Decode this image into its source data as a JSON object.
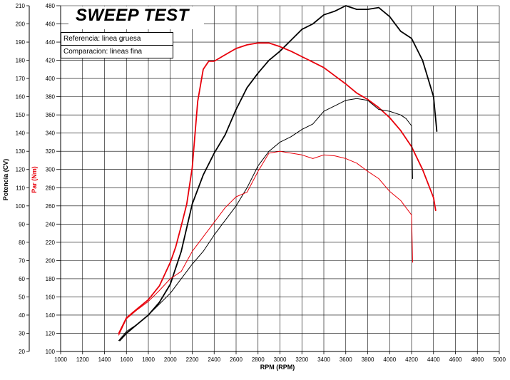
{
  "chart_data": {
    "type": "line",
    "title": "SWEEP TEST",
    "legend": [
      "Referencia: linea gruesa",
      "Comparacion: lineas fina"
    ],
    "xlabel": "RPM (RPM)",
    "ylabel_left": "Potencia (CV)",
    "ylabel_right": "Par (Nm)",
    "xlim": [
      1000,
      5000
    ],
    "ylim_power": [
      20,
      210
    ],
    "ylim_torque": [
      100,
      480
    ],
    "x_ticks": [
      1000,
      1200,
      1400,
      1600,
      1800,
      2000,
      2200,
      2400,
      2600,
      2800,
      3000,
      3200,
      3400,
      3600,
      3800,
      4000,
      4200,
      4400,
      4600,
      4800,
      5000
    ],
    "power_ticks": [
      20,
      30,
      40,
      50,
      60,
      70,
      80,
      90,
      100,
      110,
      120,
      130,
      140,
      150,
      160,
      170,
      180,
      190,
      200,
      210
    ],
    "torque_ticks": [
      100,
      120,
      140,
      160,
      180,
      200,
      220,
      240,
      260,
      280,
      300,
      320,
      340,
      360,
      380,
      400,
      420,
      440,
      460,
      480
    ],
    "grid": true,
    "colors": {
      "power": "#000000",
      "torque": "#e8000b"
    },
    "series": [
      {
        "name": "Potencia referencia",
        "axis": "power",
        "color": "#000000",
        "weight": "thick",
        "x": [
          1540,
          1600,
          1700,
          1800,
          1900,
          2000,
          2100,
          2200,
          2300,
          2400,
          2500,
          2600,
          2700,
          2800,
          2900,
          3000,
          3100,
          3200,
          3300,
          3400,
          3500,
          3600,
          3700,
          3800,
          3900,
          4000,
          4100,
          4200,
          4300,
          4400,
          4430
        ],
        "y": [
          26,
          30,
          35,
          40,
          47,
          57,
          75,
          101,
          117,
          129,
          139,
          153,
          165,
          173,
          180,
          185,
          191,
          197,
          200,
          205,
          207,
          210,
          208,
          208,
          209,
          204,
          196,
          192,
          180,
          160,
          141
        ]
      },
      {
        "name": "Par referencia",
        "axis": "torque",
        "color": "#e8000b",
        "weight": "thick",
        "x": [
          1530,
          1600,
          1700,
          1800,
          1900,
          2000,
          2050,
          2100,
          2150,
          2200,
          2250,
          2300,
          2350,
          2400,
          2500,
          2600,
          2700,
          2800,
          2900,
          3000,
          3100,
          3200,
          3300,
          3400,
          3500,
          3600,
          3700,
          3800,
          3900,
          4000,
          4100,
          4200,
          4300,
          4400,
          4420
        ],
        "y": [
          120,
          137,
          147,
          157,
          172,
          198,
          215,
          238,
          262,
          302,
          375,
          410,
          419,
          419,
          426,
          433,
          437,
          439,
          439,
          435,
          430,
          424,
          418,
          412,
          403,
          394,
          384,
          377,
          368,
          357,
          343,
          325,
          300,
          269,
          255
        ]
      },
      {
        "name": "Potencia comparacion",
        "axis": "power",
        "color": "#000000",
        "weight": "thin",
        "x": [
          1530,
          1600,
          1700,
          1800,
          1900,
          2000,
          2100,
          2200,
          2300,
          2400,
          2500,
          2600,
          2700,
          2800,
          2900,
          3000,
          3100,
          3200,
          3300,
          3400,
          3500,
          3600,
          3700,
          3800,
          3900,
          4000,
          4100,
          4150,
          4200,
          4210
        ],
        "y": [
          26,
          31,
          35,
          40,
          46,
          52,
          60,
          68,
          75,
          84,
          92,
          100,
          110,
          122,
          130,
          135,
          138,
          142,
          145,
          152,
          155,
          158,
          159,
          158,
          153,
          152,
          150,
          148,
          144,
          115
        ]
      },
      {
        "name": "Par comparacion",
        "axis": "torque",
        "color": "#e8000b",
        "weight": "thin",
        "x": [
          1530,
          1600,
          1700,
          1800,
          1900,
          2000,
          2100,
          2200,
          2300,
          2400,
          2500,
          2600,
          2700,
          2800,
          2900,
          3000,
          3100,
          3200,
          3300,
          3400,
          3500,
          3600,
          3700,
          3800,
          3900,
          4000,
          4100,
          4150,
          4200,
          4210
        ],
        "y": [
          118,
          136,
          146,
          155,
          167,
          180,
          188,
          210,
          226,
          242,
          258,
          270,
          275,
          298,
          318,
          320,
          318,
          316,
          312,
          316,
          315,
          312,
          307,
          298,
          290,
          276,
          266,
          258,
          250,
          198
        ]
      }
    ]
  }
}
